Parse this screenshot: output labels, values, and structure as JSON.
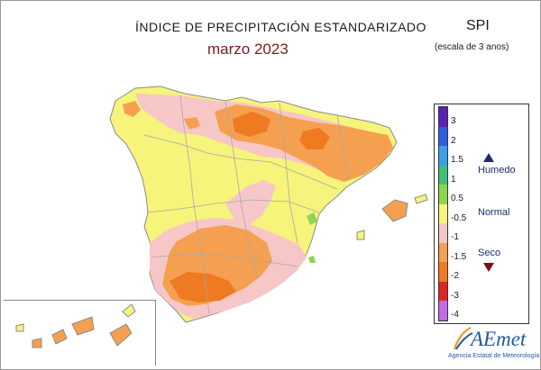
{
  "header": {
    "title": "ÍNDICE DE PRECIPITACIÓN ESTANDARIZADO",
    "subtitle": "marzo 2023",
    "index_name": "SPI",
    "scale_note": "(escala de 3 anos)"
  },
  "legend": {
    "ticks": [
      "3",
      "2",
      "1.5",
      "1",
      "0.5",
      "-0.5",
      "-1",
      "-1.5",
      "-2",
      "-3",
      "-4"
    ],
    "classes": [
      {
        "color": "#5a1fb4"
      },
      {
        "color": "#2f5fe0"
      },
      {
        "color": "#3aa0e8"
      },
      {
        "color": "#3ec07a"
      },
      {
        "color": "#8ed650"
      },
      {
        "color": "#f6f47a"
      },
      {
        "color": "#f7c7c7"
      },
      {
        "color": "#f5a050"
      },
      {
        "color": "#ee7a22"
      },
      {
        "color": "#e02424"
      },
      {
        "color": "#c46ae8"
      }
    ],
    "humid_label": "Humedo",
    "normal_label": "Normal",
    "dry_label": "Seco"
  },
  "colors": {
    "yellow": "#f6f47a",
    "pink": "#f7c7c7",
    "light_orange": "#f5a050",
    "orange": "#ee7a22",
    "green": "#8ed650",
    "border_gray": "#9a9a9a"
  },
  "logo": {
    "name": "AEmet",
    "agency": "Agencia Estatal de Meteorología"
  }
}
